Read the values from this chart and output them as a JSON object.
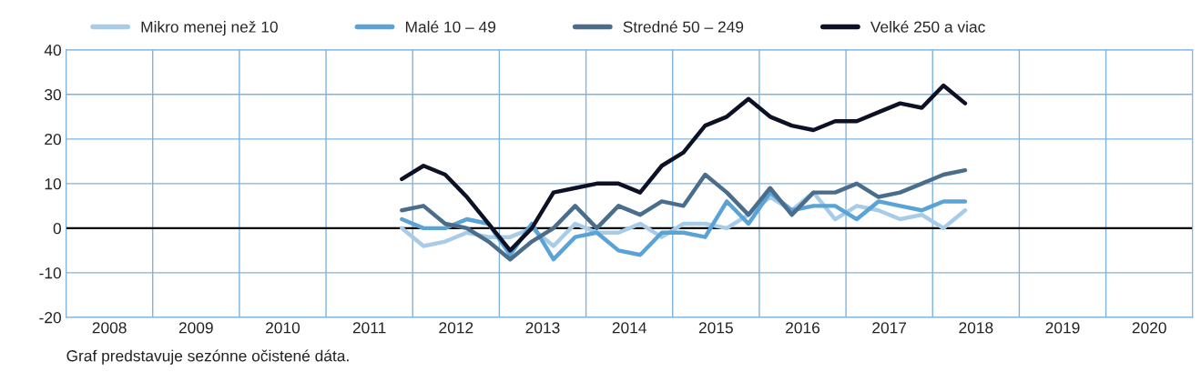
{
  "chart_data": {
    "type": "line",
    "x": [
      2011.875,
      2012.125,
      2012.375,
      2012.625,
      2012.875,
      2013.125,
      2013.375,
      2013.625,
      2013.875,
      2014.125,
      2014.375,
      2014.625,
      2014.875,
      2015.125,
      2015.375,
      2015.625,
      2015.875,
      2016.125,
      2016.375,
      2016.625,
      2016.875,
      2017.125,
      2017.375,
      2017.625,
      2017.875,
      2018.125,
      2018.375
    ],
    "series": [
      {
        "name": "Mikro menej než 10",
        "color": "#a8cbe8",
        "values": [
          0,
          -4,
          -3,
          -1,
          -2,
          -2,
          0,
          -4,
          1,
          -1,
          -1,
          1,
          -2,
          1,
          1,
          0,
          3,
          7,
          4,
          8,
          2,
          5,
          4,
          2,
          3,
          0,
          4
        ]
      },
      {
        "name": "Malé 10 – 49",
        "color": "#5aa3d6",
        "values": [
          2,
          0,
          0,
          2,
          1,
          -6,
          1,
          -7,
          -2,
          -1,
          -5,
          -6,
          -1,
          -1,
          -2,
          6,
          1,
          8,
          4,
          5,
          5,
          2,
          6,
          5,
          4,
          6,
          6
        ]
      },
      {
        "name": "Stredné 50 – 249",
        "color": "#4a6d8c",
        "values": [
          4,
          5,
          1,
          0,
          -3,
          -7,
          -3,
          0,
          5,
          0,
          5,
          3,
          6,
          5,
          12,
          8,
          3,
          9,
          3,
          8,
          8,
          10,
          7,
          8,
          10,
          12,
          13
        ]
      },
      {
        "name": "Velké 250 a viac",
        "color": "#0d1126",
        "values": [
          11,
          14,
          12,
          7,
          1,
          -5,
          0,
          8,
          9,
          10,
          10,
          8,
          14,
          17,
          23,
          25,
          29,
          25,
          23,
          22,
          24,
          24,
          26,
          28,
          27,
          32,
          28
        ]
      }
    ],
    "xlim": [
      2008,
      2021
    ],
    "xticks": [
      {
        "value": 2008.5,
        "label": "2008"
      },
      {
        "value": 2009.5,
        "label": "2009"
      },
      {
        "value": 2010.5,
        "label": "2010"
      },
      {
        "value": 2011.5,
        "label": "2011"
      },
      {
        "value": 2012.5,
        "label": "2012"
      },
      {
        "value": 2013.5,
        "label": "2013"
      },
      {
        "value": 2014.5,
        "label": "2014"
      },
      {
        "value": 2015.5,
        "label": "2015"
      },
      {
        "value": 2016.5,
        "label": "2016"
      },
      {
        "value": 2017.5,
        "label": "2017"
      },
      {
        "value": 2018.5,
        "label": "2018"
      },
      {
        "value": 2019.5,
        "label": "2019"
      },
      {
        "value": 2020.5,
        "label": "2020"
      }
    ],
    "ylim": [
      -20,
      40
    ],
    "yticks": [
      -20,
      -10,
      0,
      10,
      20,
      30,
      40
    ],
    "ref_lines": [
      {
        "axis": "y",
        "value": 0,
        "color": "#000000"
      }
    ],
    "grid": true,
    "legend": "top",
    "marker": "none",
    "line_style": "solid",
    "annotations": [
      "Graf predstavuje sezónne očistené dáta."
    ]
  }
}
